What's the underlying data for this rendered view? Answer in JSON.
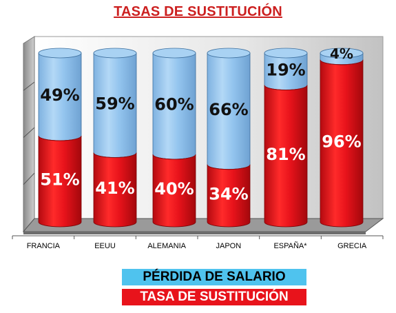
{
  "chart_data": {
    "type": "bar",
    "stacked": true,
    "percent_stacked": true,
    "title": "TASAS DE SUSTITUCIÓN",
    "categories": [
      "FRANCIA",
      "EEUU",
      "ALEMANIA",
      "JAPON",
      "ESPAÑA*",
      "GRECIA"
    ],
    "series": [
      {
        "name": "TASA DE SUSTITUCIÓN",
        "values": [
          51,
          41,
          40,
          34,
          81,
          96
        ],
        "color": "#e8131b"
      },
      {
        "name": "PÉRDIDA DE SALARIO",
        "values": [
          49,
          59,
          60,
          66,
          19,
          4
        ],
        "color": "#8fc0ea"
      }
    ],
    "value_labels": {
      "sub": [
        "51%",
        "41%",
        "40%",
        "34%",
        "81%",
        "96%"
      ],
      "loss": [
        "49%",
        "59%",
        "60%",
        "66%",
        "19%",
        "4%"
      ]
    },
    "ylim": [
      0,
      100
    ],
    "grid": true,
    "legend_position": "bottom"
  },
  "legend": {
    "loss_label": "PÉRDIDA DE SALARIO",
    "sub_label": "TASA DE SUSTITUCIÓN"
  },
  "colors": {
    "title": "#cc1f1f",
    "legend_loss_bg": "#4fc3ee",
    "legend_sub_bg": "#e8131b"
  }
}
